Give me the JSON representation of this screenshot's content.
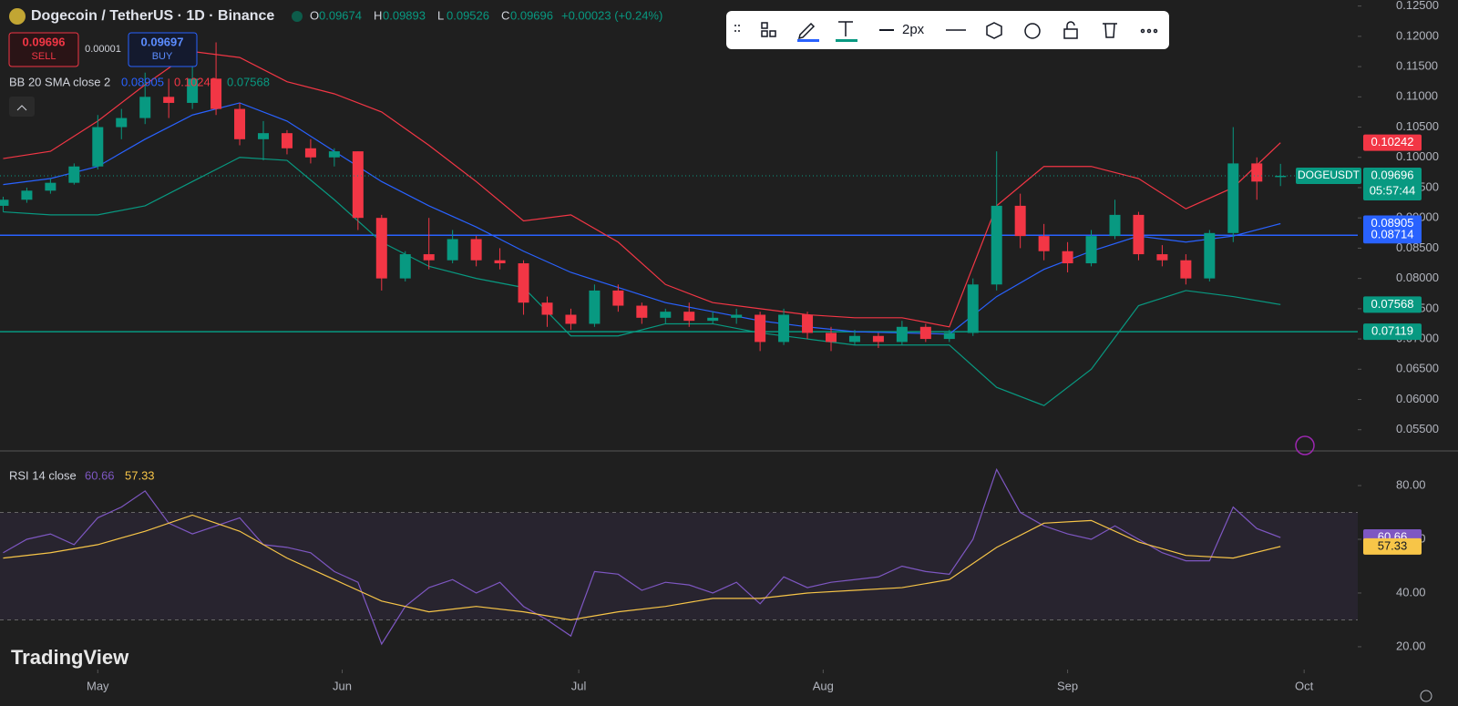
{
  "header": {
    "title": "Dogecoin / TetherUS · 1D · Binance",
    "ohlc_labels": [
      "O",
      "H",
      "L",
      "C"
    ],
    "change": "+0.00023 (+0.24%)",
    "sell_label": "SELL",
    "buy_label": "BUY",
    "buy_price": 0.09697,
    "spread": 1e-05,
    "bb_label": "BB 20 SMA close 2",
    "rsi_label": "RSI 14 close",
    "symbol": "DOGEUSDT",
    "countdown": "05:57:44",
    "watermark": "TradingView"
  },
  "toolbar": {
    "width_label": "2px"
  },
  "chart_data": {
    "type": "candlestick",
    "xlim": [
      -12.4,
      159.8
    ],
    "xticks": [
      {
        "value": 0,
        "label": "May"
      },
      {
        "value": 31,
        "label": "Jun"
      },
      {
        "value": 61,
        "label": "Jul"
      },
      {
        "value": 92,
        "label": "Aug"
      },
      {
        "value": 123,
        "label": "Sep"
      },
      {
        "value": 153,
        "label": "Oct"
      }
    ],
    "ylim": [
      0.0515,
      0.126
    ],
    "yticks": [
      {
        "value": 0.055,
        "label": "0.05500"
      },
      {
        "value": 0.06,
        "label": "0.06000"
      },
      {
        "value": 0.065,
        "label": "0.06500"
      },
      {
        "value": 0.07,
        "label": "0.07000"
      },
      {
        "value": 0.075,
        "label": "0.07500"
      },
      {
        "value": 0.08,
        "label": "0.08000"
      },
      {
        "value": 0.085,
        "label": "0.08500"
      },
      {
        "value": 0.09,
        "label": "0.09000"
      },
      {
        "value": 0.095,
        "label": "0.09500"
      },
      {
        "value": 0.1,
        "label": "0.10000"
      },
      {
        "value": 0.105,
        "label": "0.10500"
      },
      {
        "value": 0.11,
        "label": "0.11000"
      },
      {
        "value": 0.115,
        "label": "0.11500"
      },
      {
        "value": 0.12,
        "label": "0.12000"
      },
      {
        "value": 0.125,
        "label": "0.12500"
      }
    ],
    "up_color": "#089981",
    "down_color": "#f23645",
    "candles": {
      "x": [
        -12,
        -9,
        -6,
        -3,
        0,
        3,
        6,
        9,
        12,
        15,
        18,
        21,
        24,
        27,
        30,
        33,
        36,
        39,
        42,
        45,
        48,
        51,
        54,
        57,
        60,
        63,
        66,
        69,
        72,
        75,
        78,
        81,
        84,
        87,
        90,
        93,
        96,
        99,
        102,
        105,
        108,
        111,
        114,
        117,
        120,
        123,
        126,
        129,
        132,
        135,
        138,
        141,
        144,
        147,
        150
      ],
      "open": [
        0.092,
        0.093,
        0.0945,
        0.0958,
        0.0985,
        0.105,
        0.1065,
        0.11,
        0.109,
        0.113,
        0.108,
        0.103,
        0.104,
        0.1015,
        0.1,
        0.101,
        0.09,
        0.08,
        0.084,
        0.083,
        0.0865,
        0.083,
        0.0825,
        0.076,
        0.074,
        0.0725,
        0.078,
        0.0755,
        0.0735,
        0.0745,
        0.073,
        0.0735,
        0.074,
        0.0695,
        0.074,
        0.071,
        0.0695,
        0.0705,
        0.0695,
        0.072,
        0.07,
        0.071,
        0.079,
        0.092,
        0.087,
        0.0845,
        0.0825,
        0.087,
        0.0905,
        0.084,
        0.083,
        0.08,
        0.0875,
        0.099,
        0.09674
      ],
      "high": [
        0.0935,
        0.095,
        0.0965,
        0.099,
        0.107,
        0.108,
        0.114,
        0.113,
        0.115,
        0.119,
        0.109,
        0.106,
        0.1045,
        0.103,
        0.1015,
        0.101,
        0.0905,
        0.0845,
        0.09,
        0.088,
        0.087,
        0.085,
        0.083,
        0.077,
        0.075,
        0.079,
        0.079,
        0.076,
        0.075,
        0.076,
        0.0745,
        0.075,
        0.0745,
        0.075,
        0.0745,
        0.072,
        0.0715,
        0.071,
        0.073,
        0.0725,
        0.0715,
        0.08,
        0.101,
        0.094,
        0.089,
        0.086,
        0.088,
        0.093,
        0.091,
        0.0855,
        0.084,
        0.088,
        0.105,
        0.1,
        0.09893
      ],
      "low": [
        0.091,
        0.0925,
        0.094,
        0.0955,
        0.098,
        0.103,
        0.1055,
        0.1065,
        0.108,
        0.107,
        0.102,
        0.0995,
        0.1005,
        0.099,
        0.0985,
        0.088,
        0.078,
        0.0795,
        0.0815,
        0.0825,
        0.082,
        0.0815,
        0.074,
        0.072,
        0.0715,
        0.072,
        0.0745,
        0.0725,
        0.0725,
        0.072,
        0.0725,
        0.0725,
        0.068,
        0.069,
        0.07,
        0.068,
        0.069,
        0.0685,
        0.069,
        0.0695,
        0.0695,
        0.0705,
        0.078,
        0.085,
        0.083,
        0.081,
        0.082,
        0.0865,
        0.083,
        0.082,
        0.079,
        0.0795,
        0.086,
        0.093,
        0.09526
      ],
      "close": [
        0.093,
        0.0945,
        0.0958,
        0.0985,
        0.105,
        0.1065,
        0.11,
        0.109,
        0.113,
        0.108,
        0.103,
        0.104,
        0.1015,
        0.1,
        0.101,
        0.09,
        0.08,
        0.084,
        0.083,
        0.0865,
        0.083,
        0.0825,
        0.076,
        0.074,
        0.0725,
        0.078,
        0.0755,
        0.0735,
        0.0745,
        0.073,
        0.0735,
        0.074,
        0.0695,
        0.074,
        0.071,
        0.0695,
        0.0705,
        0.0695,
        0.072,
        0.07,
        0.071,
        0.079,
        0.092,
        0.087,
        0.0845,
        0.0825,
        0.087,
        0.0905,
        0.084,
        0.083,
        0.08,
        0.0875,
        0.099,
        0.096,
        0.09696
      ]
    },
    "bb": {
      "x": [
        -12,
        -6,
        0,
        6,
        12,
        18,
        24,
        30,
        36,
        42,
        48,
        54,
        60,
        66,
        72,
        78,
        84,
        90,
        96,
        102,
        108,
        114,
        120,
        126,
        132,
        138,
        144,
        150
      ],
      "upper": {
        "color": "#f23645",
        "values": [
          0.0998,
          0.101,
          0.106,
          0.112,
          0.1175,
          0.1165,
          0.1125,
          0.1105,
          0.1075,
          0.102,
          0.096,
          0.0895,
          0.0905,
          0.086,
          0.079,
          0.076,
          0.075,
          0.074,
          0.0735,
          0.0735,
          0.072,
          0.092,
          0.0985,
          0.0985,
          0.0965,
          0.0915,
          0.095,
          0.10242
        ]
      },
      "middle": {
        "color": "#2962ff",
        "values": [
          0.0955,
          0.0965,
          0.0985,
          0.103,
          0.107,
          0.109,
          0.106,
          0.101,
          0.096,
          0.092,
          0.0885,
          0.0845,
          0.081,
          0.0785,
          0.076,
          0.0745,
          0.073,
          0.072,
          0.0712,
          0.071,
          0.0708,
          0.077,
          0.0815,
          0.0845,
          0.087,
          0.086,
          0.087,
          0.08905
        ]
      },
      "lower": {
        "color": "#089981",
        "values": [
          0.091,
          0.0905,
          0.0905,
          0.092,
          0.096,
          0.1,
          0.0995,
          0.093,
          0.086,
          0.082,
          0.08,
          0.0785,
          0.0705,
          0.0705,
          0.0725,
          0.0725,
          0.071,
          0.07,
          0.069,
          0.069,
          0.069,
          0.062,
          0.059,
          0.065,
          0.0755,
          0.078,
          0.077,
          0.07568
        ]
      }
    },
    "hlines": [
      {
        "value": 0.08714,
        "color": "#2962ff"
      },
      {
        "value": 0.07119,
        "color": "#089981"
      }
    ],
    "rsi": {
      "ylim": [
        11.5,
        92.9
      ],
      "yticks": [
        {
          "value": 20,
          "label": "20.00"
        },
        {
          "value": 40,
          "label": "40.00"
        },
        {
          "value": 60,
          "label": "60.00"
        },
        {
          "value": 80,
          "label": "80.00"
        }
      ],
      "bands": [
        30,
        70
      ],
      "x": [
        -12,
        -9,
        -6,
        -3,
        0,
        3,
        6,
        9,
        12,
        15,
        18,
        21,
        24,
        27,
        30,
        33,
        36,
        39,
        42,
        45,
        48,
        51,
        54,
        57,
        60,
        63,
        66,
        69,
        72,
        75,
        78,
        81,
        84,
        87,
        90,
        93,
        96,
        99,
        102,
        105,
        108,
        111,
        114,
        117,
        120,
        123,
        126,
        129,
        132,
        135,
        138,
        141,
        144,
        147,
        150
      ],
      "series": {
        "color": "#7e57c2",
        "values": [
          55,
          60,
          62,
          58,
          68,
          72,
          78,
          66,
          62,
          65,
          68,
          58,
          57,
          55,
          48,
          44,
          21,
          35,
          42,
          45,
          40,
          44,
          35,
          30,
          24,
          48,
          47,
          41,
          44,
          43,
          40,
          44,
          36,
          46,
          42,
          44,
          45,
          46,
          50,
          48,
          47,
          60,
          86,
          70,
          65,
          62,
          60,
          65,
          60,
          55,
          52,
          52,
          72,
          64,
          60.66
        ]
      },
      "ma_x": [
        -12,
        -6,
        0,
        6,
        12,
        18,
        24,
        30,
        36,
        42,
        48,
        54,
        60,
        66,
        72,
        78,
        84,
        90,
        96,
        102,
        108,
        114,
        120,
        126,
        132,
        138,
        144,
        150
      ],
      "ma": {
        "color": "#f7c548",
        "values": [
          53,
          55,
          58,
          63,
          69,
          63,
          53,
          45,
          37,
          33,
          35,
          33,
          30,
          33,
          35,
          38,
          38,
          40,
          41,
          42,
          45,
          57,
          66,
          67,
          59,
          54,
          53,
          57.33
        ]
      }
    }
  }
}
